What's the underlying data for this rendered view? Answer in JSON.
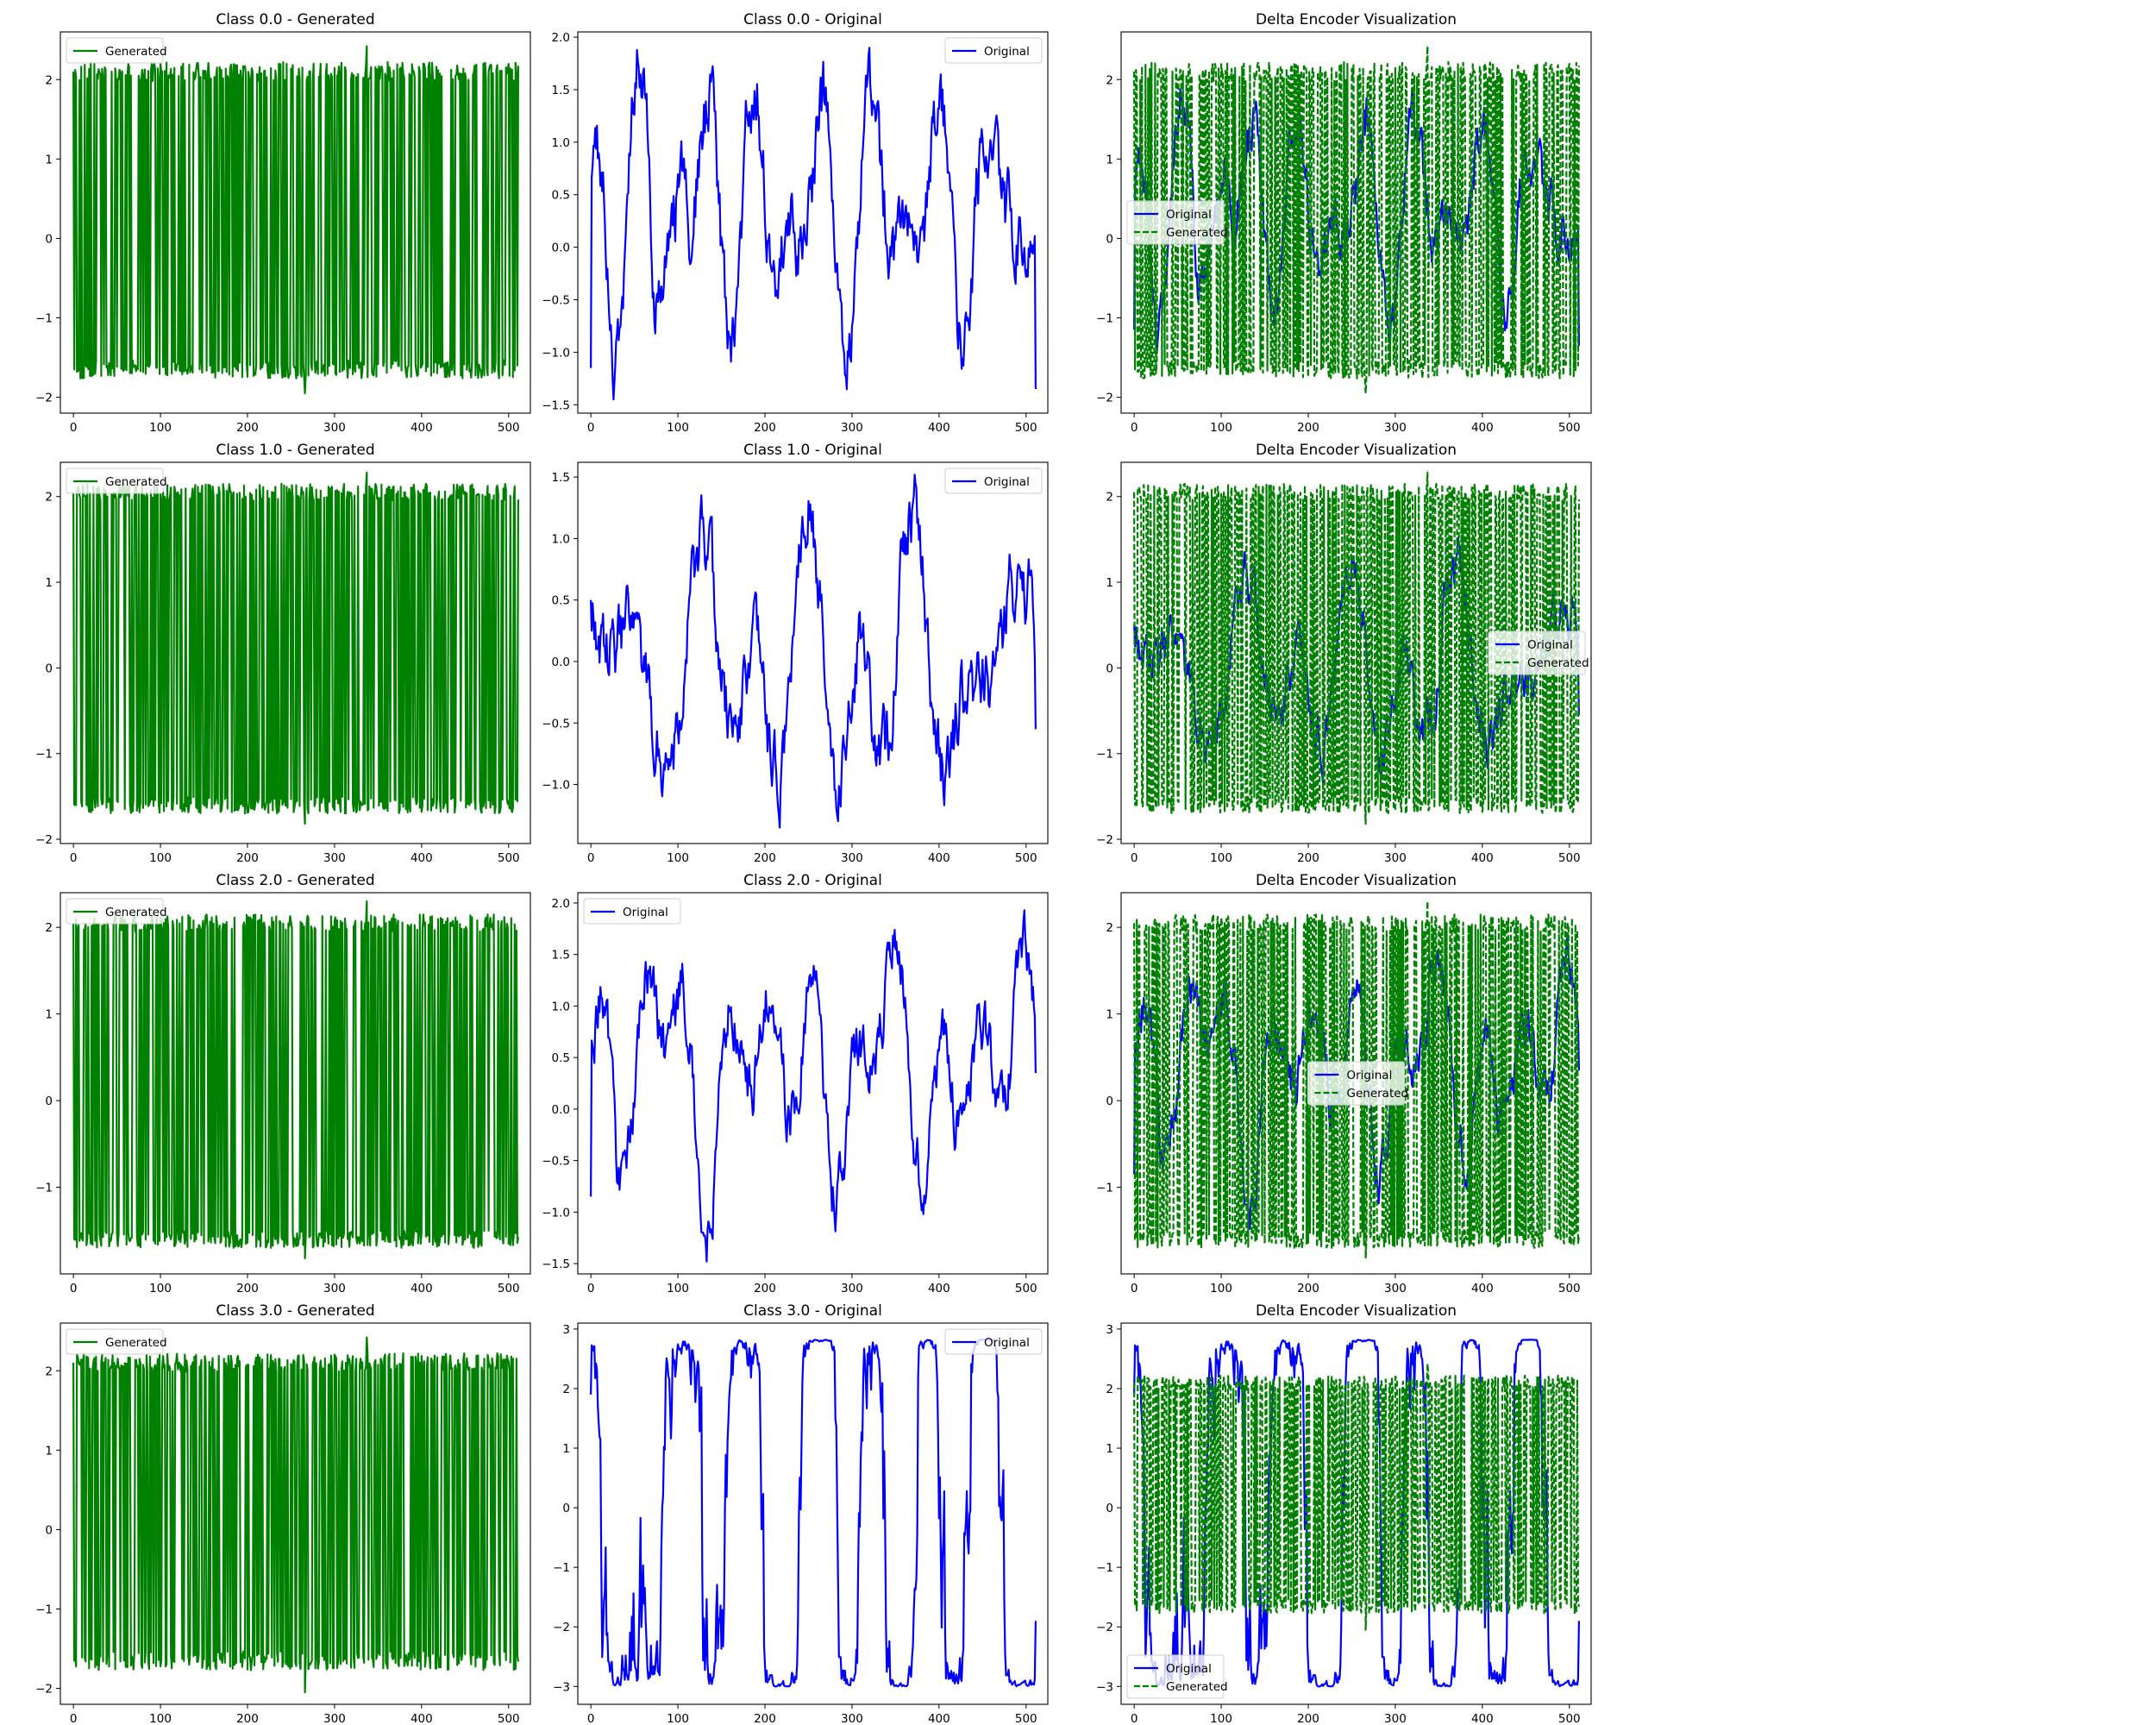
{
  "chart_data": [
    {
      "type": "line",
      "row": 0,
      "col": 0,
      "title": "Class 0.0 - Generated",
      "xlim": [
        -15,
        525
      ],
      "ylim": [
        -2.2,
        2.6
      ],
      "xticks": [
        0,
        100,
        200,
        300,
        400,
        500
      ],
      "yticks": [
        -2,
        -1,
        0,
        1,
        2
      ],
      "legend": "upper left",
      "series": [
        {
          "name": "Generated",
          "kind": "generated",
          "color": "#008000",
          "style": "solid",
          "seed": 101,
          "length": 512,
          "low": -1.65,
          "high": 2.1,
          "lowSpread": 0.12,
          "highSpread": 0.12,
          "switchProb": 0.5,
          "peak": 2.42,
          "trough": -1.95
        }
      ]
    },
    {
      "type": "line",
      "row": 0,
      "col": 1,
      "title": "Class 0.0 - Original",
      "xlim": [
        -15,
        525
      ],
      "ylim": [
        -1.58,
        2.05
      ],
      "xticks": [
        0,
        100,
        200,
        300,
        400,
        500
      ],
      "yticks": [
        -1.5,
        -1.0,
        -0.5,
        0.0,
        0.5,
        1.0,
        1.5,
        2.0
      ],
      "legend": "upper right",
      "series": [
        {
          "name": "Original",
          "kind": "original",
          "color": "#0000ff",
          "style": "solid",
          "seed": 201,
          "length": 512,
          "min": -1.45,
          "max": 1.9,
          "start": -1.15,
          "end": -1.35
        }
      ]
    },
    {
      "type": "line",
      "row": 0,
      "col": 2,
      "title": "Delta Encoder Visualization",
      "xlim": [
        -15,
        525
      ],
      "ylim": [
        -2.2,
        2.6
      ],
      "xticks": [
        0,
        100,
        200,
        300,
        400,
        500
      ],
      "yticks": [
        -2,
        -1,
        0,
        1,
        2
      ],
      "legend": "center left",
      "series": [
        {
          "name": "Original",
          "kind": "original",
          "color": "#0000ff",
          "style": "solid",
          "seed": 201,
          "length": 512,
          "min": -1.45,
          "max": 1.9,
          "start": -1.15,
          "end": -1.35
        },
        {
          "name": "Generated",
          "kind": "generated",
          "color": "#008000",
          "style": "dashed",
          "seed": 101,
          "length": 512,
          "low": -1.65,
          "high": 2.1,
          "lowSpread": 0.12,
          "highSpread": 0.12,
          "switchProb": 0.5,
          "peak": 2.42,
          "trough": -1.95
        }
      ]
    },
    {
      "type": "line",
      "row": 1,
      "col": 0,
      "title": "Class 1.0 - Generated",
      "xlim": [
        -15,
        525
      ],
      "ylim": [
        -2.05,
        2.4
      ],
      "xticks": [
        0,
        100,
        200,
        300,
        400,
        500
      ],
      "yticks": [
        -2,
        -1,
        0,
        1,
        2
      ],
      "legend": "upper left",
      "series": [
        {
          "name": "Generated",
          "kind": "generated",
          "color": "#008000",
          "style": "solid",
          "seed": 102,
          "length": 512,
          "low": -1.6,
          "high": 2.05,
          "lowSpread": 0.1,
          "highSpread": 0.1,
          "switchProb": 0.5,
          "peak": 2.28,
          "trough": -1.82
        }
      ]
    },
    {
      "type": "line",
      "row": 1,
      "col": 1,
      "title": "Class 1.0 - Original",
      "xlim": [
        -15,
        525
      ],
      "ylim": [
        -1.48,
        1.62
      ],
      "xticks": [
        0,
        100,
        200,
        300,
        400,
        500
      ],
      "yticks": [
        -1.0,
        -0.5,
        0.0,
        0.5,
        1.0,
        1.5
      ],
      "legend": "upper right",
      "series": [
        {
          "name": "Original",
          "kind": "original",
          "color": "#0000ff",
          "style": "solid",
          "seed": 202,
          "length": 512,
          "min": -1.35,
          "max": 1.52,
          "start": 0.5,
          "end": -0.55
        }
      ]
    },
    {
      "type": "line",
      "row": 1,
      "col": 2,
      "title": "Delta Encoder Visualization",
      "xlim": [
        -15,
        525
      ],
      "ylim": [
        -2.05,
        2.4
      ],
      "xticks": [
        0,
        100,
        200,
        300,
        400,
        500
      ],
      "yticks": [
        -2,
        -1,
        0,
        1,
        2
      ],
      "legend": "center right",
      "series": [
        {
          "name": "Original",
          "kind": "original",
          "color": "#0000ff",
          "style": "solid",
          "seed": 202,
          "length": 512,
          "min": -1.35,
          "max": 1.52,
          "start": 0.5,
          "end": -0.55
        },
        {
          "name": "Generated",
          "kind": "generated",
          "color": "#008000",
          "style": "dashed",
          "seed": 102,
          "length": 512,
          "low": -1.6,
          "high": 2.05,
          "lowSpread": 0.1,
          "highSpread": 0.1,
          "switchProb": 0.5,
          "peak": 2.28,
          "trough": -1.82
        }
      ]
    },
    {
      "type": "line",
      "row": 2,
      "col": 0,
      "title": "Class 2.0 - Generated",
      "xlim": [
        -15,
        525
      ],
      "ylim": [
        -2.0,
        2.4
      ],
      "xticks": [
        0,
        100,
        200,
        300,
        400,
        500
      ],
      "yticks": [
        -1,
        0,
        1,
        2
      ],
      "legend": "upper left",
      "series": [
        {
          "name": "Generated",
          "kind": "generated",
          "color": "#008000",
          "style": "solid",
          "seed": 103,
          "length": 512,
          "low": -1.6,
          "high": 2.05,
          "lowSpread": 0.1,
          "highSpread": 0.1,
          "switchProb": 0.5,
          "peak": 2.3,
          "trough": -1.82
        }
      ]
    },
    {
      "type": "line",
      "row": 2,
      "col": 1,
      "title": "Class 2.0 - Original",
      "xlim": [
        -15,
        525
      ],
      "ylim": [
        -1.6,
        2.1
      ],
      "xticks": [
        0,
        100,
        200,
        300,
        400,
        500
      ],
      "yticks": [
        -1.5,
        -1.0,
        -0.5,
        0.0,
        0.5,
        1.0,
        1.5,
        2.0
      ],
      "legend": "upper left",
      "series": [
        {
          "name": "Original",
          "kind": "original",
          "color": "#0000ff",
          "style": "solid",
          "seed": 203,
          "length": 512,
          "min": -1.48,
          "max": 1.93,
          "start": -0.85,
          "end": 0.35
        }
      ]
    },
    {
      "type": "line",
      "row": 2,
      "col": 2,
      "title": "Delta Encoder Visualization",
      "xlim": [
        -15,
        525
      ],
      "ylim": [
        -2.0,
        2.4
      ],
      "xticks": [
        0,
        100,
        200,
        300,
        400,
        500
      ],
      "yticks": [
        -1,
        0,
        1,
        2
      ],
      "legend": "center",
      "series": [
        {
          "name": "Original",
          "kind": "original",
          "color": "#0000ff",
          "style": "solid",
          "seed": 203,
          "length": 512,
          "min": -1.48,
          "max": 1.93,
          "start": -0.85,
          "end": 0.35
        },
        {
          "name": "Generated",
          "kind": "generated",
          "color": "#008000",
          "style": "dashed",
          "seed": 103,
          "length": 512,
          "low": -1.6,
          "high": 2.05,
          "lowSpread": 0.1,
          "highSpread": 0.1,
          "switchProb": 0.5,
          "peak": 2.3,
          "trough": -1.82
        }
      ]
    },
    {
      "type": "line",
      "row": 3,
      "col": 0,
      "title": "Class 3.0 - Generated",
      "xlim": [
        -15,
        525
      ],
      "ylim": [
        -2.2,
        2.6
      ],
      "xticks": [
        0,
        100,
        200,
        300,
        400,
        500
      ],
      "yticks": [
        -2,
        -1,
        0,
        1,
        2
      ],
      "legend": "upper left",
      "series": [
        {
          "name": "Generated",
          "kind": "generated",
          "color": "#008000",
          "style": "solid",
          "seed": 104,
          "length": 512,
          "low": -1.65,
          "high": 2.1,
          "lowSpread": 0.12,
          "highSpread": 0.12,
          "switchProb": 0.5,
          "peak": 2.42,
          "trough": -2.05
        }
      ]
    },
    {
      "type": "line",
      "row": 3,
      "col": 1,
      "title": "Class 3.0 - Original",
      "xlim": [
        -15,
        525
      ],
      "ylim": [
        -3.3,
        3.1
      ],
      "xticks": [
        0,
        100,
        200,
        300,
        400,
        500
      ],
      "yticks": [
        -3,
        -2,
        -1,
        0,
        1,
        2,
        3
      ],
      "legend": "upper right",
      "series": [
        {
          "name": "Original",
          "kind": "original",
          "color": "#0000ff",
          "style": "solid",
          "seed": 204,
          "length": 512,
          "min": -3.0,
          "max": 2.82,
          "start": 1.9,
          "end": -1.9,
          "bimodal": true
        }
      ]
    },
    {
      "type": "line",
      "row": 3,
      "col": 2,
      "title": "Delta Encoder Visualization",
      "xlim": [
        -15,
        525
      ],
      "ylim": [
        -3.3,
        3.1
      ],
      "xticks": [
        0,
        100,
        200,
        300,
        400,
        500
      ],
      "yticks": [
        -3,
        -2,
        -1,
        0,
        1,
        2,
        3
      ],
      "legend": "lower left",
      "series": [
        {
          "name": "Original",
          "kind": "original",
          "color": "#0000ff",
          "style": "solid",
          "seed": 204,
          "length": 512,
          "min": -3.0,
          "max": 2.82,
          "start": 1.9,
          "end": -1.9,
          "bimodal": true
        },
        {
          "name": "Generated",
          "kind": "generated",
          "color": "#008000",
          "style": "dashed",
          "seed": 104,
          "length": 512,
          "low": -1.65,
          "high": 2.1,
          "lowSpread": 0.12,
          "highSpread": 0.12,
          "switchProb": 0.5,
          "peak": 2.42,
          "trough": -2.05
        }
      ]
    }
  ]
}
